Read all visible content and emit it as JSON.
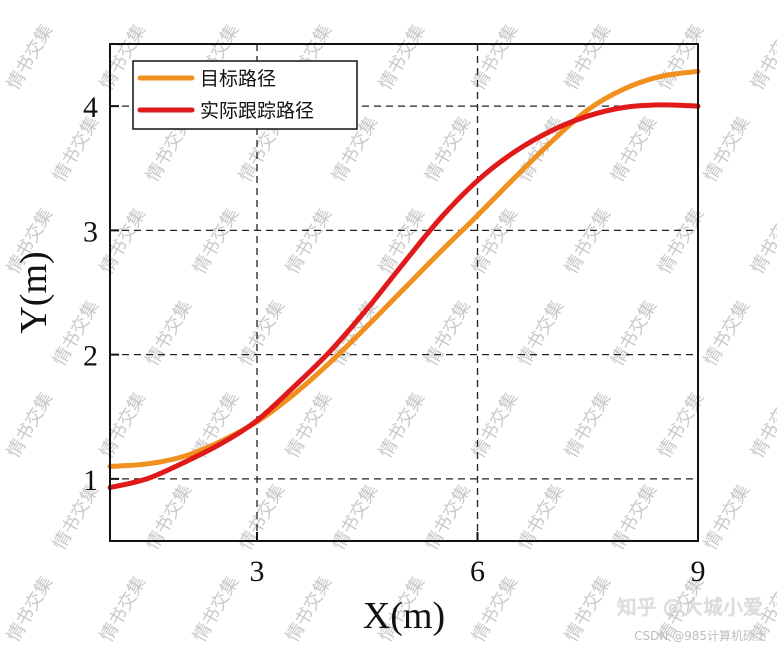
{
  "chart_data": {
    "type": "line",
    "title": "",
    "xlabel": "X(m)",
    "ylabel": "Y(m)",
    "xlim": [
      1.0,
      9.0
    ],
    "ylim": [
      0.5,
      4.5
    ],
    "xticks": [
      3,
      6,
      9
    ],
    "yticks": [
      1,
      2,
      3,
      4
    ],
    "grid": true,
    "legend_position": "top-left",
    "series": [
      {
        "name": "目标路径",
        "color": "#f0901e",
        "x": [
          1.0,
          1.5,
          2.0,
          2.5,
          3.0,
          3.5,
          4.0,
          4.5,
          5.0,
          5.5,
          6.0,
          6.5,
          7.0,
          7.5,
          8.0,
          8.5,
          9.0
        ],
        "y": [
          1.1,
          1.12,
          1.18,
          1.3,
          1.46,
          1.68,
          1.94,
          2.23,
          2.53,
          2.83,
          3.12,
          3.42,
          3.71,
          3.97,
          4.14,
          4.24,
          4.28
        ]
      },
      {
        "name": "实际跟踪路径",
        "color": "#e01a1a",
        "x": [
          1.0,
          1.5,
          2.0,
          2.5,
          3.0,
          3.5,
          4.0,
          4.5,
          5.0,
          5.5,
          6.0,
          6.5,
          7.0,
          7.5,
          8.0,
          8.5,
          9.0
        ],
        "y": [
          0.93,
          1.0,
          1.13,
          1.28,
          1.47,
          1.74,
          2.03,
          2.37,
          2.74,
          3.1,
          3.4,
          3.63,
          3.8,
          3.92,
          3.99,
          4.01,
          4.0
        ]
      }
    ]
  },
  "watermark": {
    "text": "情书交集"
  },
  "footer": {
    "brand": "知乎 @大城小爱",
    "sub": "CSDN @985计算机硕士"
  }
}
